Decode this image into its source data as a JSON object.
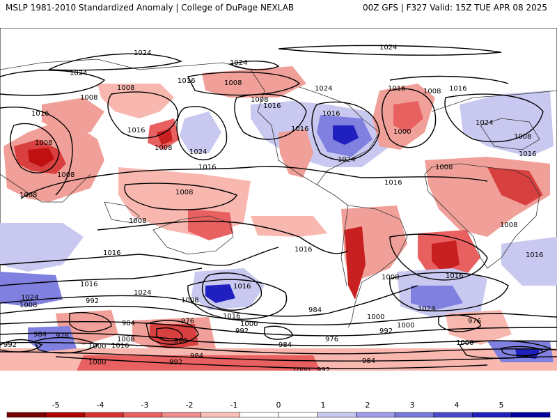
{
  "header": {
    "title_left": "MSLP 1981-2010 Standardized Anomaly | College of DuPage NEXLAB",
    "title_right": "00Z GFS | F327 Valid: 15Z TUE APR 08 2025"
  },
  "colors": {
    "anomaly_neg_strong": "#cc0000",
    "anomaly_neg": "#f08080",
    "anomaly_neg_weak": "#f8c0b8",
    "anomaly_pos_weak": "#c8c8f0",
    "anomaly_pos": "#8080e0",
    "anomaly_pos_strong": "#2020c0",
    "contour": "#000000"
  },
  "contour_labels": {
    "l1024_a": "1024",
    "l1024_b": "1024",
    "l1024_c": "1024",
    "l1024_d": "1024",
    "l1024_e": "1024",
    "l1024_f": "1024",
    "l1024_g": "1024",
    "l1024_h": "1024",
    "l1024_i": "1024",
    "l1024_j": "1024",
    "l1024_k": "1024",
    "l1016_a": "1016",
    "l1016_b": "1016",
    "l1016_c": "1016",
    "l1016_d": "1016",
    "l1016_e": "1016",
    "l1016_f": "1016",
    "l1016_g": "1016",
    "l1016_h": "1016",
    "l1016_i": "1016",
    "l1016_j": "1016",
    "l1016_k": "1016",
    "l1016_l": "1016",
    "l1016_m": "1016",
    "l1016_n": "1016",
    "l1016_o": "1016",
    "l1016_p": "1016",
    "l1016_q": "1016",
    "l1016_r": "1016",
    "l1016_s": "1016",
    "l1008_a": "1008",
    "l1008_b": "1008",
    "l1008_c": "1008",
    "l1008_d": "1008",
    "l1008_e": "1008",
    "l1008_f": "1008",
    "l1008_g": "1008",
    "l1008_h": "1008",
    "l1008_i": "1008",
    "l1008_j": "1008",
    "l1008_k": "1008",
    "l1008_l": "1008",
    "l1008_m": "1008",
    "l1008_n": "1008",
    "l1008_o": "1008",
    "l1008_p": "1008",
    "l1008_q": "1008",
    "l1008_r": "1008",
    "l1000_a": "1000",
    "l1000_b": "1000",
    "l1000_c": "1000",
    "l1000_d": "1000",
    "l1000_e": "1000",
    "l1000_f": "1000",
    "l1000_g": "1000",
    "l1000_h": "1000",
    "l992_a": "992",
    "l992_b": "992",
    "l992_c": "992",
    "l992_d": "992",
    "l992_e": "992",
    "l992_f": "992",
    "l984_a": "984",
    "l984_b": "984",
    "l984_c": "984",
    "l984_d": "984",
    "l984_e": "984",
    "l984_f": "984",
    "l976_a": "976",
    "l976_b": "976",
    "l976_c": "976",
    "l976_d": "976",
    "l968_a": "968"
  },
  "colorbar": {
    "ticks": [
      "-5",
      "-4",
      "-3",
      "-2",
      "-1",
      "0",
      "1",
      "2",
      "3",
      "4",
      "5"
    ],
    "colors": [
      "#7a0000",
      "#b00000",
      "#d83030",
      "#e86060",
      "#f08c8c",
      "#f8c0b8",
      "#ffffff",
      "#ffffff",
      "#c8c8f0",
      "#9e9ee8",
      "#7878dc",
      "#4848cc",
      "#2020c0",
      "#0000a0"
    ]
  }
}
